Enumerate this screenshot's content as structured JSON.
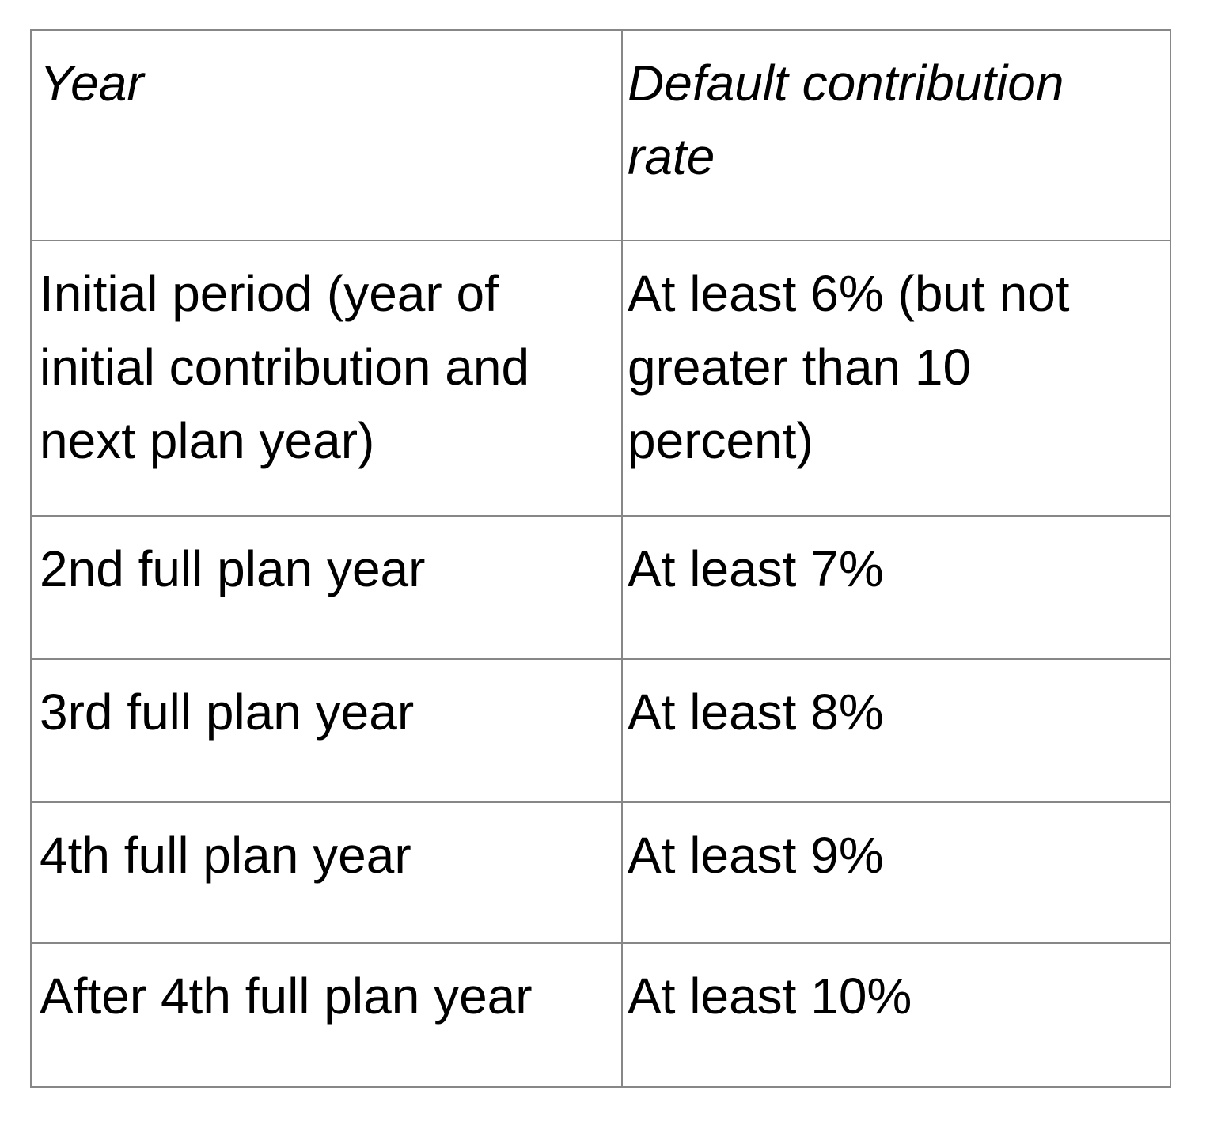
{
  "colors": {
    "table_border": "#878787",
    "text": "#000000",
    "background": "#ffffff"
  },
  "table": {
    "headers": {
      "year": "Year",
      "rate": "Default contribution rate"
    },
    "rows": [
      {
        "year": "Initial period (year of initial contribution and next plan year)",
        "rate": "At least 6% (but not greater than 10 percent)"
      },
      {
        "year": "2nd full plan year",
        "rate": "At least 7%"
      },
      {
        "year": "3rd full plan year",
        "rate": "At least 8%"
      },
      {
        "year": "4th full plan year",
        "rate": "At least 9%"
      },
      {
        "year": "After 4th full plan year",
        "rate": "At least 10%"
      }
    ]
  }
}
